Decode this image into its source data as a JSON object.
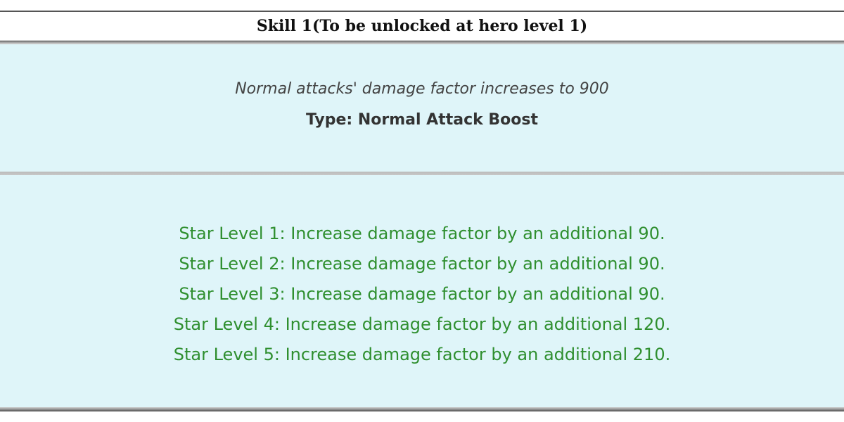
{
  "header": {
    "title": "Skill 1(To be unlocked at hero level 1)"
  },
  "description": {
    "text": "Normal attacks' damage factor increases to 900",
    "type": "Type: Normal Attack Boost"
  },
  "star_levels": [
    "Star Level 1: Increase damage factor by an additional 90.",
    "Star Level 2: Increase damage factor by an additional 90.",
    "Star Level 3: Increase damage factor by an additional 90.",
    "Star Level 4: Increase damage factor by an additional 120.",
    "Star Level 5: Increase damage factor by an additional 210."
  ],
  "colors": {
    "panel": "#dff5f9",
    "star_text": "#2f8f2f"
  }
}
